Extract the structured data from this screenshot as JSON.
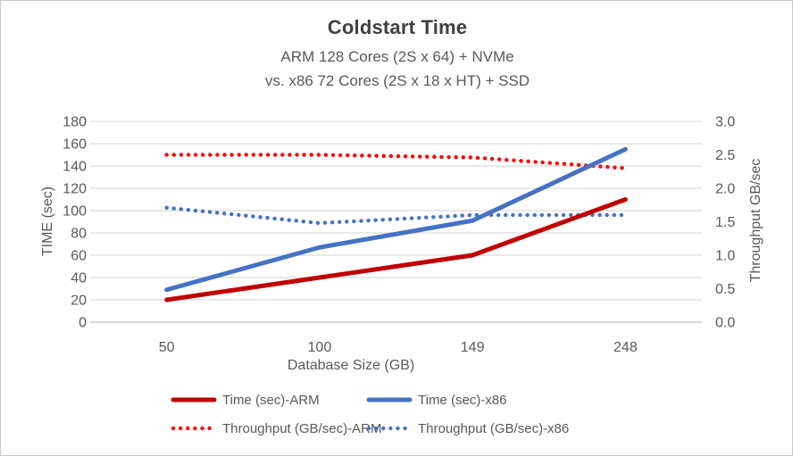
{
  "chart_data": {
    "type": "line",
    "title": "Coldstart Time",
    "subtitle_lines": [
      "ARM 128 Cores (2S x 64) + NVMe",
      "vs.  x86 72 Cores (2S x 18 x HT) + SSD"
    ],
    "categories": [
      "50",
      "100",
      "149",
      "248"
    ],
    "xlabel": "Database Size (GB)",
    "ylabel_left": "TIME (sec)",
    "ylabel_right": "Throughput GB/sec",
    "y_left_axis": {
      "min": 0,
      "max": 180,
      "ticks": [
        "0",
        "20",
        "40",
        "60",
        "80",
        "100",
        "120",
        "140",
        "160",
        "180"
      ]
    },
    "y_right_axis": {
      "min": 0.0,
      "max": 3.0,
      "ticks": [
        "0.0",
        "0.5",
        "1.0",
        "1.5",
        "2.0",
        "2.5",
        "3.0"
      ]
    },
    "grid": true,
    "legend_position": "bottom",
    "series": [
      {
        "name": "Time (sec)-ARM",
        "axis": "left",
        "style": "solid",
        "color": "#C00000",
        "values": [
          20,
          40,
          60,
          110
        ]
      },
      {
        "name": "Time (sec)-x86",
        "axis": "left",
        "style": "solid",
        "color": "#4472C4",
        "values": [
          29,
          67,
          91,
          155
        ]
      },
      {
        "name": "Throughput (GB/sec)-ARM",
        "axis": "right",
        "style": "dotted",
        "color": "#FF0000",
        "values": [
          2.5,
          2.5,
          2.46,
          2.3
        ]
      },
      {
        "name": "Throughput (GB/sec)-x86",
        "axis": "right",
        "style": "dotted",
        "color": "#4472C4",
        "values": [
          1.71,
          1.48,
          1.6,
          1.6
        ]
      }
    ],
    "colors": {
      "gridline": "#D9D9D9",
      "axis_line": "#BFBFBF",
      "tick_text": "#595959",
      "title_text": "#404040"
    }
  }
}
